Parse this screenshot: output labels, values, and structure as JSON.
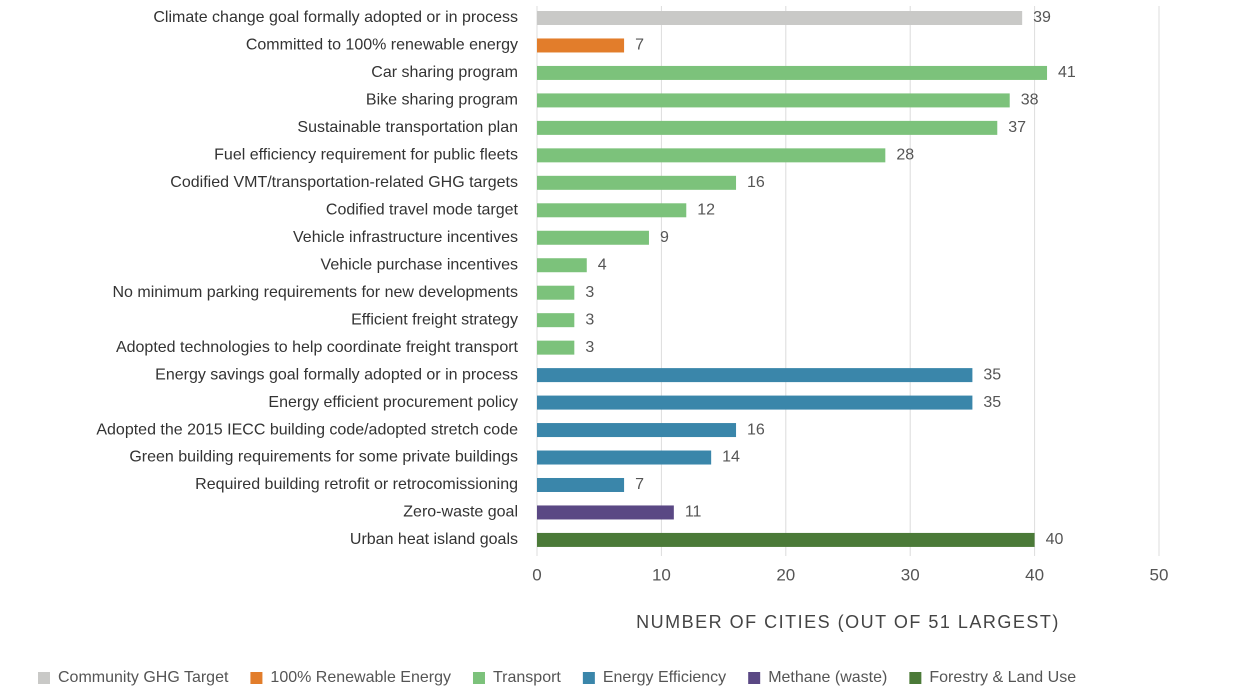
{
  "chart_data": {
    "type": "barh",
    "categories": [
      "Climate change goal formally adopted or in process",
      "Committed to 100% renewable energy",
      "Car sharing program",
      "Bike sharing program",
      "Sustainable transportation plan",
      "Fuel efficiency requirement for public fleets",
      "Codified VMT/transportation-related GHG targets",
      "Codified travel mode target",
      "Vehicle infrastructure incentives",
      "Vehicle purchase incentives",
      "No minimum parking requirements for new developments",
      "Efficient freight strategy",
      "Adopted technologies to help coordinate freight transport",
      "Energy savings goal formally adopted or in process",
      "Energy efficient procurement policy",
      "Adopted the 2015 IECC building code/adopted stretch code",
      "Green building requirements for some private buildings",
      "Required building retrofit or retrocomissioning",
      "Zero-waste goal",
      "Urban heat island goals"
    ],
    "series": [
      {
        "name": "Community GHG Target",
        "color": "#c9c9c7",
        "values": [
          39,
          null,
          null,
          null,
          null,
          null,
          null,
          null,
          null,
          null,
          null,
          null,
          null,
          null,
          null,
          null,
          null,
          null,
          null,
          null
        ]
      },
      {
        "name": "100% Renewable Energy",
        "color": "#e27d2b",
        "values": [
          null,
          7,
          null,
          null,
          null,
          null,
          null,
          null,
          null,
          null,
          null,
          null,
          null,
          null,
          null,
          null,
          null,
          null,
          null,
          null
        ]
      },
      {
        "name": "Transport",
        "color": "#7cc27b",
        "values": [
          null,
          null,
          41,
          38,
          37,
          28,
          16,
          12,
          9,
          4,
          3,
          3,
          3,
          null,
          null,
          null,
          null,
          null,
          null,
          null
        ]
      },
      {
        "name": "Energy Efficiency",
        "color": "#3a86aa",
        "values": [
          null,
          null,
          null,
          null,
          null,
          null,
          null,
          null,
          null,
          null,
          null,
          null,
          null,
          35,
          35,
          16,
          14,
          7,
          null,
          null
        ]
      },
      {
        "name": "Methane (waste)",
        "color": "#5a4884",
        "values": [
          null,
          null,
          null,
          null,
          null,
          null,
          null,
          null,
          null,
          null,
          null,
          null,
          null,
          null,
          null,
          null,
          null,
          null,
          11,
          null
        ]
      },
      {
        "name": "Forestry & Land Use",
        "color": "#4b7a38",
        "values": [
          null,
          null,
          null,
          null,
          null,
          null,
          null,
          null,
          null,
          null,
          null,
          null,
          null,
          null,
          null,
          null,
          null,
          null,
          null,
          40
        ]
      }
    ],
    "xlabel": "NUMBER OF CITIES (OUT OF 51 LARGEST)",
    "xlim": [
      0,
      50
    ],
    "xticks": [
      0,
      10,
      20,
      30,
      40,
      50
    ],
    "grid": true,
    "legend": "bottom"
  }
}
